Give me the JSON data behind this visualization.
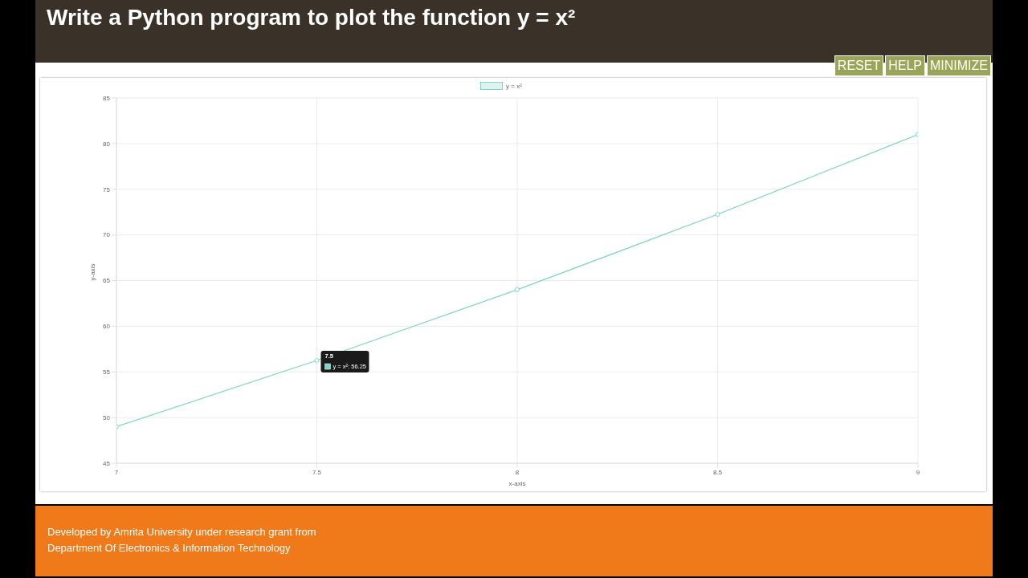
{
  "chart_data": {
    "type": "line",
    "title": "Write a Python program to plot the function y = x²",
    "xlabel": "x-axis",
    "ylabel": "y-axis",
    "x": [
      7,
      7.5,
      8,
      8.5,
      9
    ],
    "series": [
      {
        "name": "y = x²",
        "color": "#7fd4c4",
        "values": [
          49,
          56.25,
          64,
          72.25,
          81
        ]
      }
    ],
    "xlim": [
      7,
      9
    ],
    "xticks": [
      7,
      7.5,
      8,
      8.5,
      9
    ],
    "ylim": [
      45,
      85
    ],
    "yticks": [
      45,
      50,
      55,
      60,
      65,
      70,
      75,
      80,
      85
    ],
    "grid": true,
    "legend": "top",
    "marker": "circle",
    "line_style": "solid",
    "annotations": [
      {
        "text": "7.5",
        "x": 7.5,
        "y": 56.25
      },
      {
        "text": "y = x²: 56.25",
        "x": 7.5,
        "y": 56.25
      },
      "RESET",
      "HELP",
      "MINIMIZE",
      "Developed by Amrita University under research grant from",
      "Department Of Electronics & Information Technology"
    ]
  }
}
